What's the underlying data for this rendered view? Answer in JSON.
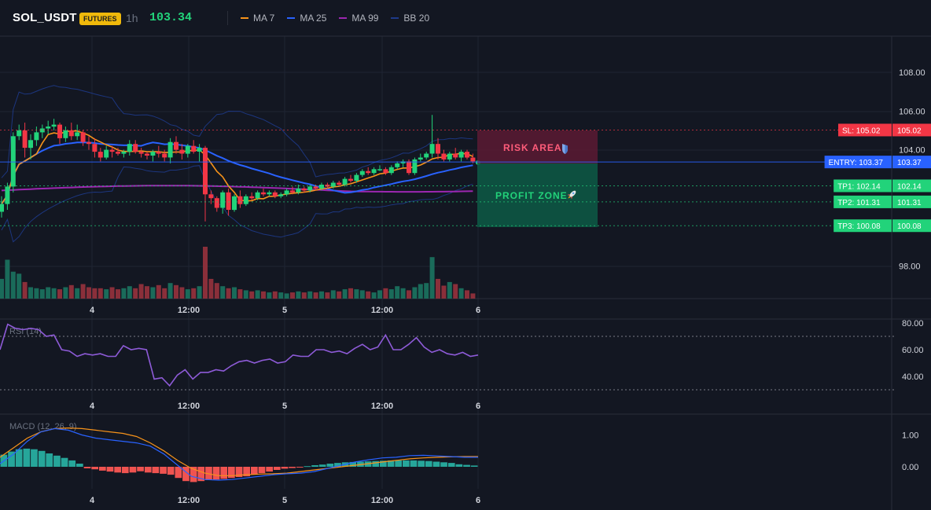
{
  "header": {
    "symbol": "SOL_USDT",
    "badge": "FUTURES",
    "timeframe": "1h",
    "price": "103.34",
    "legend": [
      {
        "label": "MA 7",
        "color": "#f7931a"
      },
      {
        "label": "MA 25",
        "color": "#2962ff"
      },
      {
        "label": "MA 99",
        "color": "#9c27b0"
      },
      {
        "label": "BB 20",
        "color": "#1e3a8a"
      }
    ]
  },
  "colors": {
    "bg": "#131722",
    "grid": "#1f2433",
    "up": "#22d37a",
    "down": "#f23645",
    "vol_up": "#1a6b5a",
    "vol_down": "#8a2f3a",
    "sl": "#f23645",
    "entry": "#2962ff",
    "tp": "#22d37a",
    "rsi": "#8e5bd8",
    "macd": "#2962ff",
    "signal": "#f7931a",
    "hist_pos": "#26a69a",
    "hist_neg": "#ef5350"
  },
  "x_labels": [
    "4",
    "12:00",
    "5",
    "12:00",
    "6"
  ],
  "main": {
    "y_ticks": [
      "108.00",
      "106.00",
      "104.00",
      "98.00"
    ],
    "levels": [
      {
        "label": "SL: 105.02",
        "value": "105.02",
        "price": 105.02,
        "kind": "sl"
      },
      {
        "label": "ENTRY: 103.37",
        "value": "103.37",
        "price": 103.37,
        "kind": "entry"
      },
      {
        "label": "TP1: 102.14",
        "value": "102.14",
        "price": 102.14,
        "kind": "tp"
      },
      {
        "label": "TP2: 101.31",
        "value": "101.31",
        "price": 101.31,
        "kind": "tp"
      },
      {
        "label": "TP3: 100.08",
        "value": "100.08",
        "price": 100.08,
        "kind": "tp"
      }
    ],
    "risk_label": "RISK AREA",
    "profit_label": "PROFIT ZONE"
  },
  "rsi": {
    "title": "RSI (14)",
    "y_ticks": [
      "80.00",
      "60.00",
      "40.00"
    ]
  },
  "macd": {
    "title": "MACD (12, 26, 9)",
    "y_ticks": [
      "1.00",
      "0.00"
    ]
  },
  "chart_data": {
    "type": "candlestick",
    "candles": [
      [
        100.8,
        101.6,
        100.5,
        101.2
      ],
      [
        101.2,
        102.3,
        100.9,
        102.1
      ],
      [
        102.1,
        104.9,
        101.8,
        104.7
      ],
      [
        104.7,
        105.3,
        104.5,
        105.0
      ],
      [
        105.0,
        105.4,
        103.6,
        104.1
      ],
      [
        104.1,
        104.8,
        103.5,
        104.5
      ],
      [
        104.5,
        105.2,
        104.2,
        104.9
      ],
      [
        104.9,
        105.3,
        104.6,
        105.1
      ],
      [
        105.1,
        105.5,
        104.8,
        105.2
      ],
      [
        105.2,
        105.6,
        105.0,
        105.3
      ],
      [
        105.3,
        105.4,
        104.3,
        104.6
      ],
      [
        104.6,
        105.2,
        104.4,
        105.0
      ],
      [
        105.0,
        105.4,
        104.5,
        104.7
      ],
      [
        104.7,
        105.3,
        104.5,
        104.9
      ],
      [
        104.9,
        105.0,
        104.2,
        104.4
      ],
      [
        104.4,
        104.7,
        104.0,
        104.3
      ],
      [
        104.3,
        104.6,
        103.6,
        103.9
      ],
      [
        103.9,
        104.1,
        103.4,
        103.6
      ],
      [
        103.6,
        104.2,
        103.5,
        104.0
      ],
      [
        104.0,
        104.2,
        103.6,
        103.9
      ],
      [
        103.9,
        104.1,
        103.7,
        103.8
      ],
      [
        103.8,
        104.0,
        103.6,
        103.9
      ],
      [
        103.9,
        104.5,
        103.7,
        104.3
      ],
      [
        104.3,
        104.5,
        103.8,
        103.9
      ],
      [
        103.9,
        104.1,
        103.6,
        103.8
      ],
      [
        103.8,
        103.9,
        103.5,
        103.7
      ],
      [
        103.7,
        104.0,
        103.4,
        103.9
      ],
      [
        103.9,
        104.2,
        103.6,
        103.8
      ],
      [
        103.8,
        104.0,
        103.4,
        103.6
      ],
      [
        103.6,
        104.6,
        103.3,
        104.4
      ],
      [
        104.4,
        104.7,
        103.8,
        104.0
      ],
      [
        104.0,
        104.3,
        103.5,
        103.8
      ],
      [
        103.8,
        104.3,
        103.6,
        104.2
      ],
      [
        104.2,
        104.5,
        103.8,
        103.9
      ],
      [
        103.9,
        104.3,
        103.4,
        104.1
      ],
      [
        104.1,
        104.2,
        100.3,
        101.7
      ],
      [
        101.7,
        101.9,
        101.2,
        101.5
      ],
      [
        101.5,
        101.6,
        100.8,
        101.0
      ],
      [
        101.0,
        101.9,
        100.7,
        101.8
      ],
      [
        101.8,
        102.0,
        100.6,
        100.9
      ],
      [
        100.9,
        101.7,
        100.8,
        101.6
      ],
      [
        101.6,
        101.9,
        101.0,
        101.2
      ],
      [
        101.2,
        101.7,
        101.1,
        101.6
      ],
      [
        101.6,
        101.8,
        101.4,
        101.5
      ],
      [
        101.5,
        101.9,
        101.4,
        101.8
      ],
      [
        101.8,
        102.0,
        101.6,
        101.7
      ],
      [
        101.7,
        101.9,
        101.6,
        101.8
      ],
      [
        101.8,
        101.9,
        101.5,
        101.6
      ],
      [
        101.6,
        101.8,
        101.5,
        101.7
      ],
      [
        101.7,
        102.0,
        101.6,
        101.9
      ],
      [
        101.9,
        102.1,
        101.7,
        101.8
      ],
      [
        101.8,
        102.2,
        101.7,
        102.0
      ],
      [
        102.0,
        102.1,
        101.8,
        101.9
      ],
      [
        101.9,
        102.2,
        101.8,
        102.1
      ],
      [
        102.1,
        102.2,
        101.9,
        102.0
      ],
      [
        102.0,
        102.3,
        101.9,
        102.2
      ],
      [
        102.2,
        102.3,
        102.0,
        102.1
      ],
      [
        102.1,
        102.4,
        102.0,
        102.3
      ],
      [
        102.3,
        102.4,
        102.1,
        102.2
      ],
      [
        102.2,
        102.6,
        102.1,
        102.5
      ],
      [
        102.5,
        102.7,
        102.3,
        102.4
      ],
      [
        102.4,
        102.8,
        102.3,
        102.7
      ],
      [
        102.7,
        103.0,
        102.6,
        102.9
      ],
      [
        102.9,
        103.1,
        102.7,
        102.8
      ],
      [
        102.8,
        103.1,
        102.7,
        103.0
      ],
      [
        103.0,
        103.2,
        102.9,
        103.0
      ],
      [
        103.0,
        103.1,
        102.7,
        102.8
      ],
      [
        102.8,
        103.2,
        102.7,
        103.1
      ],
      [
        103.1,
        103.4,
        103.0,
        103.3
      ],
      [
        103.3,
        103.5,
        103.1,
        103.4
      ],
      [
        103.4,
        103.5,
        102.7,
        102.8
      ],
      [
        102.8,
        103.6,
        102.7,
        103.5
      ],
      [
        103.5,
        103.8,
        103.4,
        103.6
      ],
      [
        103.6,
        103.9,
        103.5,
        103.8
      ],
      [
        103.8,
        105.8,
        103.6,
        104.3
      ],
      [
        104.3,
        104.6,
        103.5,
        103.8
      ],
      [
        103.8,
        104.0,
        103.4,
        103.5
      ],
      [
        103.5,
        103.9,
        103.4,
        103.8
      ],
      [
        103.8,
        104.1,
        103.5,
        103.6
      ],
      [
        103.6,
        104.0,
        103.4,
        103.9
      ],
      [
        103.9,
        104.0,
        103.5,
        103.6
      ],
      [
        103.6,
        103.8,
        103.3,
        103.4
      ]
    ],
    "volumes": [
      0.38,
      0.75,
      0.52,
      0.48,
      0.32,
      0.22,
      0.2,
      0.18,
      0.22,
      0.2,
      0.18,
      0.22,
      0.26,
      0.2,
      0.28,
      0.22,
      0.2,
      0.2,
      0.18,
      0.22,
      0.18,
      0.2,
      0.24,
      0.2,
      0.28,
      0.24,
      0.22,
      0.26,
      0.2,
      0.3,
      0.26,
      0.22,
      0.18,
      0.2,
      0.24,
      1.0,
      0.38,
      0.3,
      0.24,
      0.2,
      0.22,
      0.18,
      0.16,
      0.14,
      0.16,
      0.14,
      0.12,
      0.14,
      0.12,
      0.1,
      0.12,
      0.14,
      0.12,
      0.14,
      0.12,
      0.14,
      0.12,
      0.16,
      0.14,
      0.18,
      0.2,
      0.18,
      0.16,
      0.14,
      0.12,
      0.16,
      0.2,
      0.18,
      0.24,
      0.2,
      0.16,
      0.22,
      0.28,
      0.3,
      0.8,
      0.38,
      0.25,
      0.32,
      0.28,
      0.2,
      0.16,
      0.1
    ],
    "rsi": [
      60,
      79,
      76,
      75,
      76,
      75,
      70,
      71,
      60,
      59,
      55,
      57,
      56,
      57,
      55,
      55,
      63,
      60,
      61,
      60,
      38,
      39,
      33,
      41,
      45,
      38,
      43,
      43,
      45,
      44,
      48,
      51,
      52,
      50,
      52,
      53,
      50,
      51,
      56,
      55,
      55,
      60,
      60,
      58,
      59,
      57,
      61,
      64,
      60,
      62,
      71,
      60,
      60,
      64,
      69,
      62,
      58,
      60,
      57,
      56,
      58,
      55,
      56
    ],
    "macd": [
      0.1,
      0.4,
      0.8,
      1.1,
      1.2,
      1.15,
      1.0,
      0.9,
      0.85,
      0.8,
      0.75,
      0.65,
      0.4,
      0.05,
      -0.3,
      -0.4,
      -0.42,
      -0.4,
      -0.35,
      -0.3,
      -0.25,
      -0.22,
      -0.2,
      -0.15,
      -0.05,
      0.05,
      0.15,
      0.22,
      0.28,
      0.3,
      0.35,
      0.36,
      0.34,
      0.32,
      0.3,
      0.3
    ],
    "signal": [
      0.3,
      0.6,
      0.9,
      1.1,
      1.2,
      1.22,
      1.2,
      1.15,
      1.1,
      1.05,
      0.95,
      0.75,
      0.5,
      0.2,
      -0.05,
      -0.2,
      -0.28,
      -0.28,
      -0.25,
      -0.23,
      -0.22,
      -0.2,
      -0.15,
      -0.1,
      -0.05,
      0.0,
      0.05,
      0.1,
      0.15,
      0.2,
      0.25,
      0.28,
      0.3,
      0.31,
      0.32,
      0.32
    ],
    "hist": [
      0.38,
      0.48,
      0.55,
      0.57,
      0.55,
      0.5,
      0.42,
      0.35,
      0.28,
      0.2,
      0.1,
      -0.05,
      -0.08,
      -0.12,
      -0.15,
      -0.18,
      -0.2,
      -0.18,
      -0.14,
      -0.18,
      -0.2,
      -0.22,
      -0.25,
      -0.35,
      -0.45,
      -0.48,
      -0.45,
      -0.42,
      -0.4,
      -0.38,
      -0.35,
      -0.32,
      -0.3,
      -0.25,
      -0.2,
      -0.15,
      -0.1,
      -0.06,
      -0.04,
      -0.02,
      0.02,
      0.05,
      0.07,
      0.1,
      0.12,
      0.14,
      0.15,
      0.16,
      0.17,
      0.18,
      0.19,
      0.2,
      0.2,
      0.2,
      0.2,
      0.19,
      0.18,
      0.16,
      0.14,
      0.12,
      0.08,
      0.06,
      0.04
    ]
  }
}
